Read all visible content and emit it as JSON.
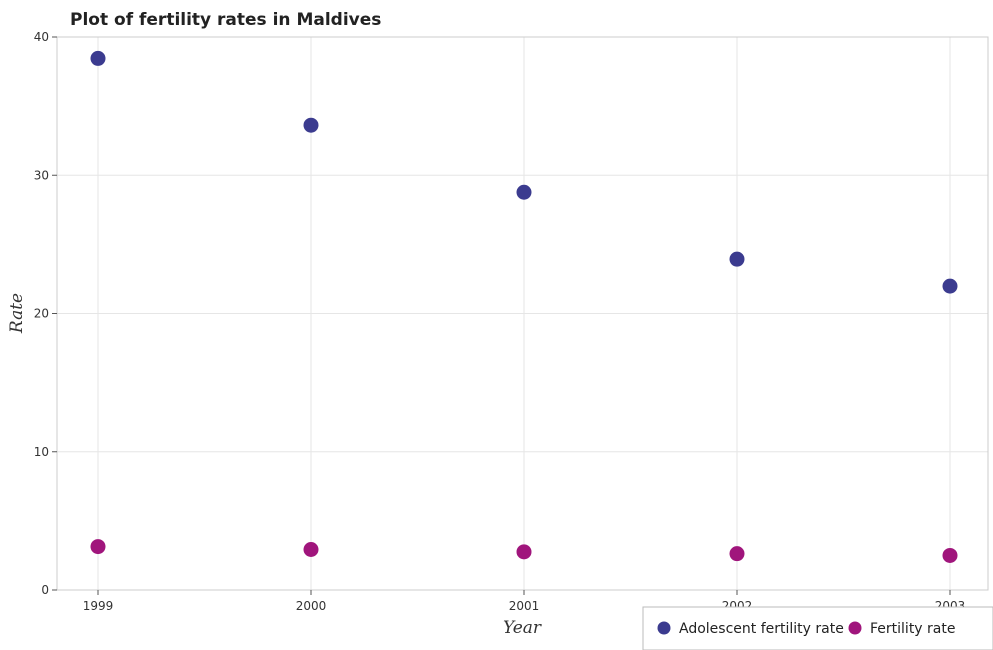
{
  "chart_data": {
    "type": "scatter",
    "title": "Plot of fertility rates in Maldives",
    "xlabel": "Year",
    "ylabel": "Rate",
    "x": [
      "1999",
      "2000",
      "2001",
      "2002",
      "2003"
    ],
    "ylim": [
      0,
      40
    ],
    "yticks": [
      "0",
      "10",
      "20",
      "30",
      "40"
    ],
    "grid": true,
    "legend_position": "bottom-right",
    "series": [
      {
        "name": "Adolescent fertility rate",
        "color": "#3b3b8f",
        "values": [
          38.45,
          33.62,
          28.77,
          23.93,
          21.98
        ]
      },
      {
        "name": "Fertility rate",
        "color": "#a0157c",
        "values": [
          3.14,
          2.93,
          2.76,
          2.63,
          2.5
        ]
      }
    ]
  }
}
